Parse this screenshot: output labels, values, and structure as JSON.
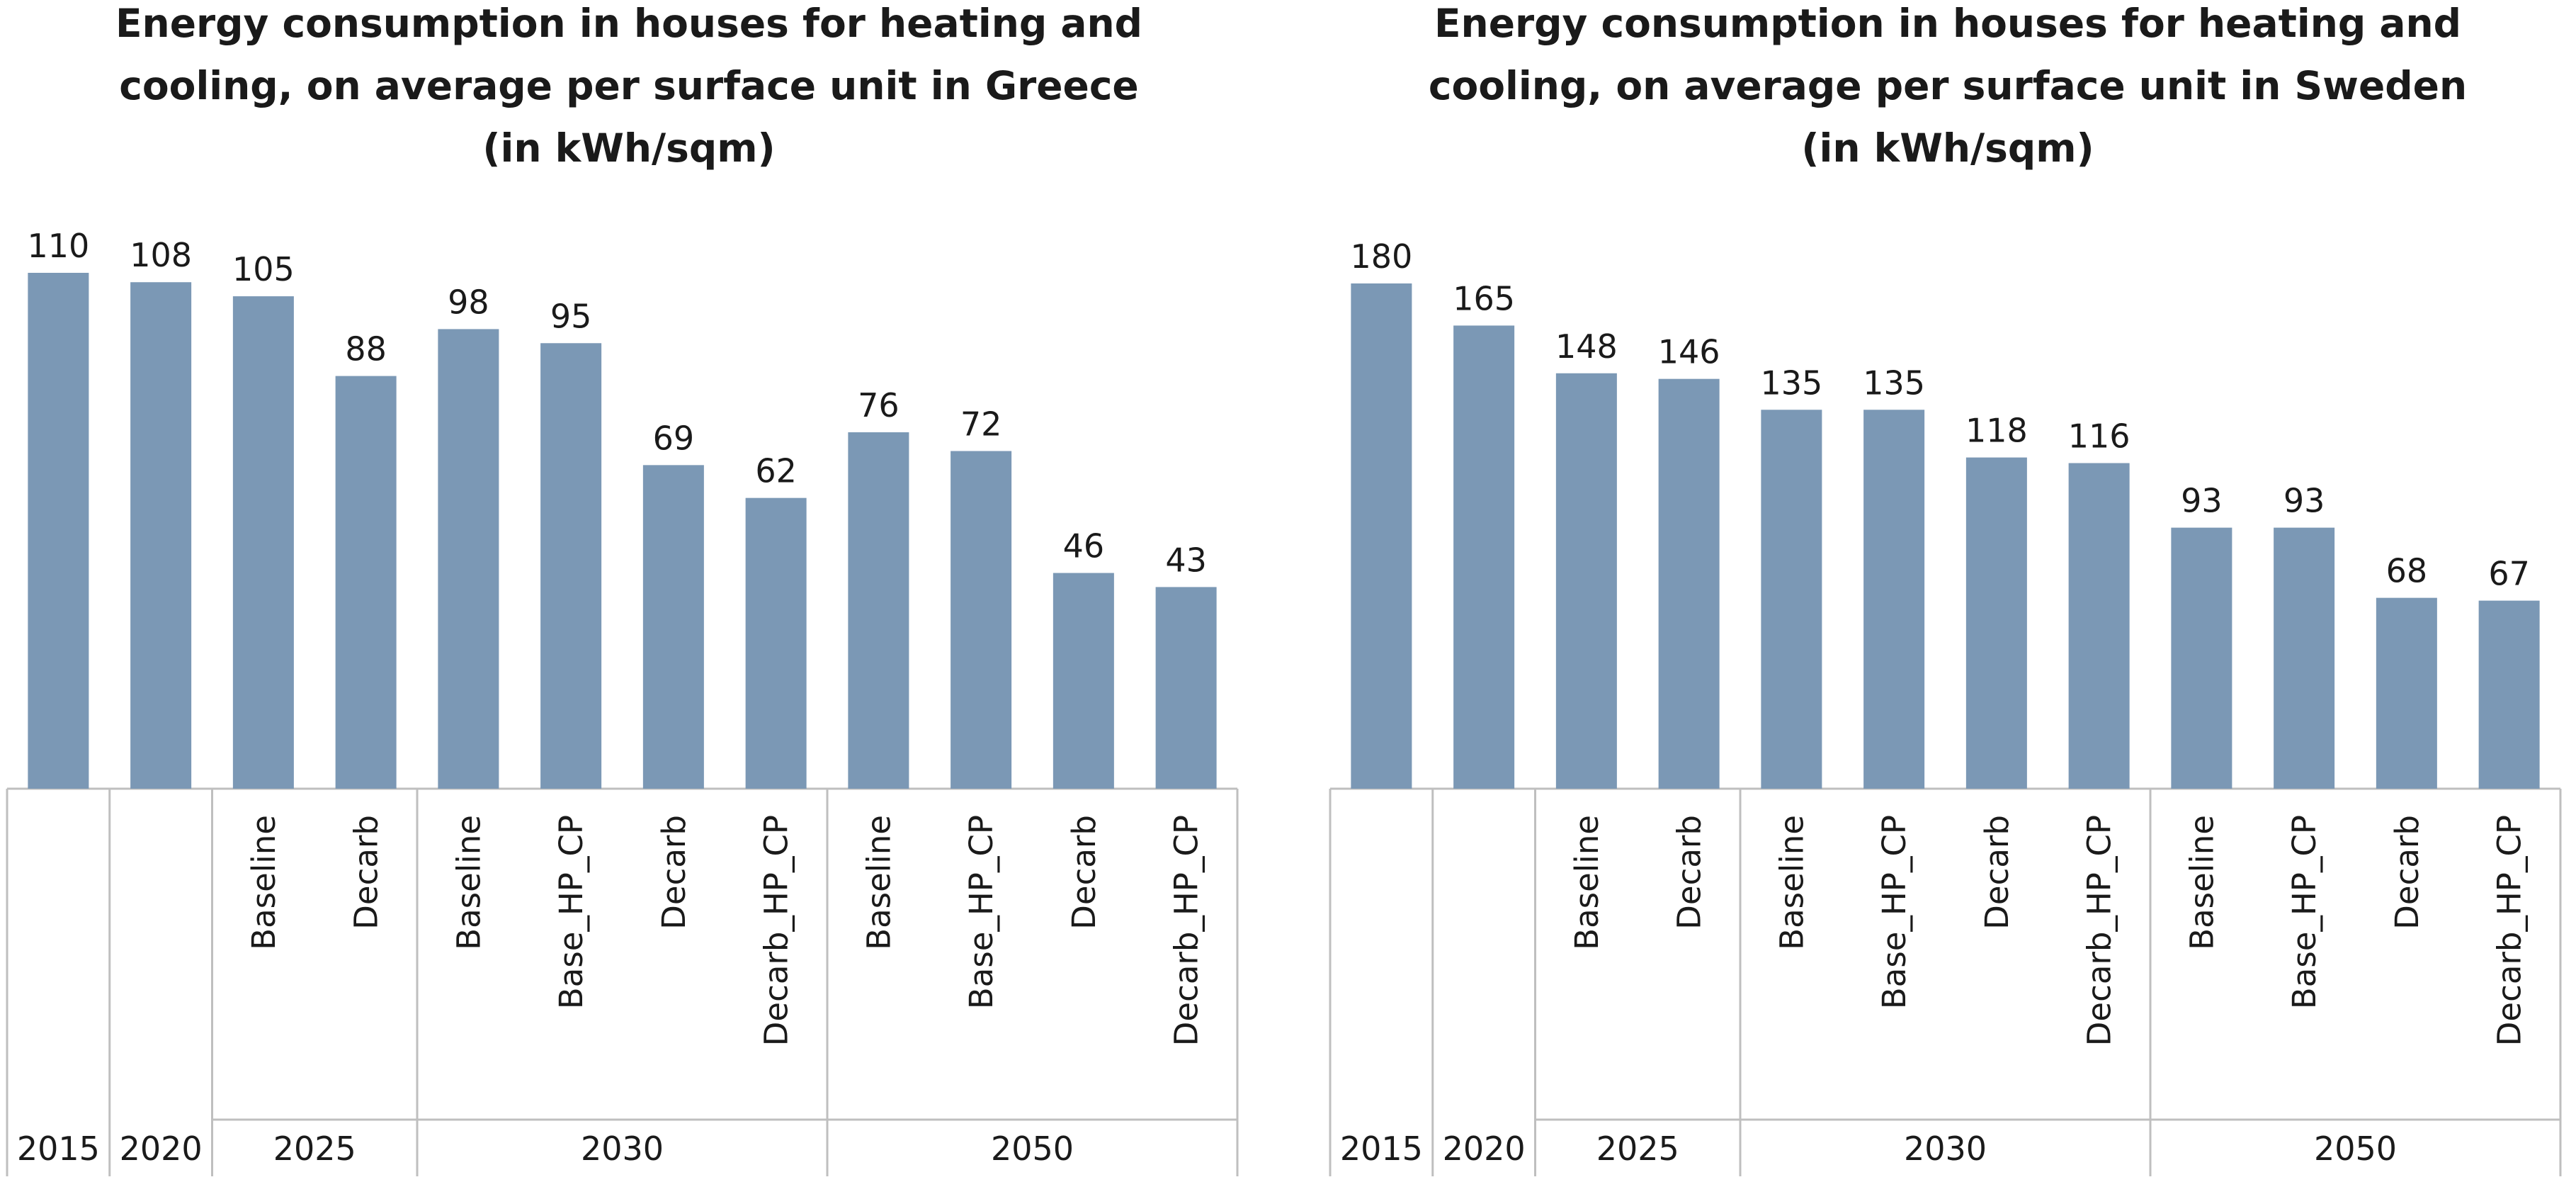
{
  "chart_data": [
    {
      "type": "bar",
      "title": [
        "Energy consumption in houses for heating and",
        "cooling, on average per surface unit in Greece",
        "(in kWh/sqm)"
      ],
      "xlabel": "",
      "ylabel": "",
      "ylim": [
        0,
        110
      ],
      "groups": [
        {
          "label": "2015",
          "bars": [
            {
              "label": "",
              "value": 110
            }
          ]
        },
        {
          "label": "2020",
          "bars": [
            {
              "label": "",
              "value": 108
            }
          ]
        },
        {
          "label": "2025",
          "bars": [
            {
              "label": "Baseline",
              "value": 105
            },
            {
              "label": "Decarb",
              "value": 88
            }
          ]
        },
        {
          "label": "2030",
          "bars": [
            {
              "label": "Baseline",
              "value": 98
            },
            {
              "label": "Base_HP_CP",
              "value": 95
            },
            {
              "label": "Decarb",
              "value": 69
            },
            {
              "label": "Decarb_HP_CP",
              "value": 62
            }
          ]
        },
        {
          "label": "2050",
          "bars": [
            {
              "label": "Baseline",
              "value": 76
            },
            {
              "label": "Base_HP_CP",
              "value": 72
            },
            {
              "label": "Decarb",
              "value": 46
            },
            {
              "label": "Decarb_HP_CP",
              "value": 43
            }
          ]
        }
      ],
      "colors": {
        "bar": "#7b98b5",
        "grid": "#bfbfbf"
      }
    },
    {
      "type": "bar",
      "title": [
        "Energy consumption in houses for heating and",
        "cooling, on average per surface unit in Sweden",
        "(in kWh/sqm)"
      ],
      "xlabel": "",
      "ylabel": "",
      "ylim": [
        0,
        180
      ],
      "groups": [
        {
          "label": "2015",
          "bars": [
            {
              "label": "",
              "value": 180
            }
          ]
        },
        {
          "label": "2020",
          "bars": [
            {
              "label": "",
              "value": 165
            }
          ]
        },
        {
          "label": "2025",
          "bars": [
            {
              "label": "Baseline",
              "value": 148
            },
            {
              "label": "Decarb",
              "value": 146
            }
          ]
        },
        {
          "label": "2030",
          "bars": [
            {
              "label": "Baseline",
              "value": 135
            },
            {
              "label": "Base_HP_CP",
              "value": 135
            },
            {
              "label": "Decarb",
              "value": 118
            },
            {
              "label": "Decarb_HP_CP",
              "value": 116
            }
          ]
        },
        {
          "label": "2050",
          "bars": [
            {
              "label": "Baseline",
              "value": 93
            },
            {
              "label": "Base_HP_CP",
              "value": 93
            },
            {
              "label": "Decarb",
              "value": 68
            },
            {
              "label": "Decarb_HP_CP",
              "value": 67
            }
          ]
        }
      ],
      "colors": {
        "bar": "#7b98b5",
        "grid": "#bfbfbf"
      }
    }
  ]
}
